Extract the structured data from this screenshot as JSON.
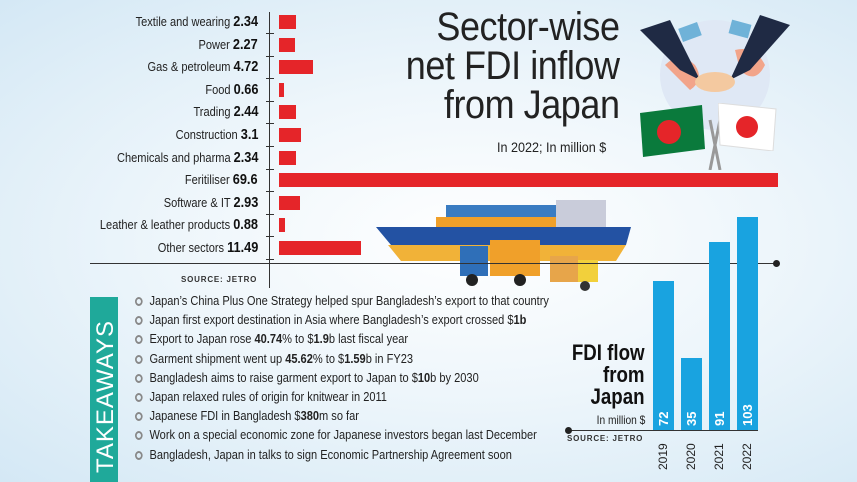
{
  "chart_data": [
    {
      "type": "bar",
      "orientation": "horizontal",
      "title": "Sector-wise net FDI inflow from Japan",
      "subtitle": "In 2022; In million $",
      "source": "SOURCE: JETRO",
      "categories": [
        "Textile and wearing",
        "Power",
        "Gas & petroleum",
        "Food",
        "Trading",
        "Construction",
        "Chemicals and pharma",
        "Feritiliser",
        "Software & IT",
        "Leather & leather products",
        "Other sectors"
      ],
      "values": [
        2.34,
        2.27,
        4.72,
        0.66,
        2.44,
        3.1,
        2.34,
        69.6,
        2.93,
        0.88,
        11.49
      ],
      "value_labels": [
        "2.34",
        "2.27",
        "4.72",
        "0.66",
        "2.44",
        "3.1",
        "2.34",
        "69.6",
        "2.93",
        "0.88",
        "11.49"
      ],
      "color": "#e52529"
    },
    {
      "type": "bar",
      "orientation": "vertical",
      "title_lines": [
        "FDI flow",
        "from",
        "Japan"
      ],
      "unit": "In million $",
      "source": "SOURCE: JETRO",
      "categories": [
        "2019",
        "2020",
        "2021",
        "2022"
      ],
      "values": [
        72,
        35,
        91,
        103
      ],
      "value_labels": [
        "72",
        "35",
        "91",
        "103"
      ],
      "color": "#19a3e0"
    }
  ],
  "takeaways": {
    "label": "TAKEAWAYS",
    "color": "#1fa99a",
    "items": [
      [
        {
          "t": "Japan’s China Plus One Strategy helped spur Bangladesh’s export to that country"
        }
      ],
      [
        {
          "t": "Japan first export destination in Asia where Bangladesh’s export crossed $"
        },
        {
          "t": "1b",
          "b": true
        }
      ],
      [
        {
          "t": "Export to Japan rose "
        },
        {
          "t": "40.74",
          "b": true
        },
        {
          "t": "% to $"
        },
        {
          "t": "1.9",
          "b": true
        },
        {
          "t": "b last fiscal year"
        }
      ],
      [
        {
          "t": "Garment shipment went up "
        },
        {
          "t": "45.62",
          "b": true
        },
        {
          "t": "% to $"
        },
        {
          "t": "1.59",
          "b": true
        },
        {
          "t": "b in FY23"
        }
      ],
      [
        {
          "t": "Bangladesh aims to raise garment export to Japan to $"
        },
        {
          "t": "10",
          "b": true
        },
        {
          "t": "b by 2030"
        }
      ],
      [
        {
          "t": "Japan relaxed rules of origin for knitwear in 2011"
        }
      ],
      [
        {
          "t": "Japanese FDI in Bangladesh $"
        },
        {
          "t": "380",
          "b": true
        },
        {
          "t": "m so far"
        }
      ],
      [
        {
          "t": "Work on a special economic zone for Japanese investors began last December"
        }
      ],
      [
        {
          "t": "Bangladesh, Japan in talks to sign Economic Partnership Agreement soon"
        }
      ]
    ]
  },
  "illustrations": [
    "handshake-globe-icon",
    "bangladesh-flag-icon",
    "japan-flag-icon",
    "cargo-ship-icon",
    "truck-icon",
    "forklift-icon"
  ]
}
